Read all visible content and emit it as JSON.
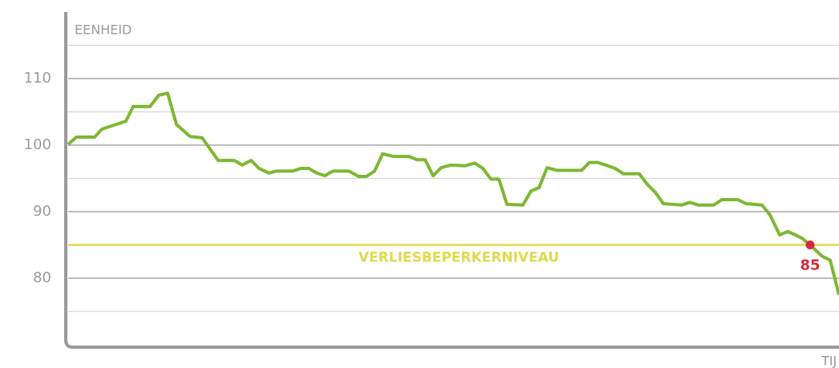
{
  "chart_data": {
    "type": "line",
    "ylabel": "EENHEID",
    "xlabel": "TIJ",
    "ylim": [
      70,
      120
    ],
    "yticks": [
      80,
      90,
      100,
      110
    ],
    "minor_yticks": [
      75,
      85,
      95,
      105,
      115
    ],
    "grid": true,
    "xlim": [
      0,
      961
    ],
    "series": [
      {
        "color": "#7cb832",
        "x": [
          0,
          10,
          33,
          42,
          72,
          81,
          102,
          113,
          124,
          135,
          152,
          167,
          187,
          207,
          217,
          228,
          238,
          250,
          260,
          280,
          290,
          300,
          310,
          320,
          330,
          350,
          362,
          372,
          382,
          392,
          405,
          425,
          435,
          445,
          455,
          465,
          477,
          495,
          507,
          517,
          527,
          537,
          547,
          567,
          577,
          587,
          597,
          610,
          640,
          650,
          660,
          670,
          682,
          692,
          712,
          722,
          732,
          742,
          765,
          775,
          785,
          805,
          815,
          835,
          845,
          865,
          875,
          887,
          897,
          905,
          915,
          925,
          940,
          950,
          961
        ],
        "values": [
          100.1,
          101.2,
          101.2,
          102.4,
          103.6,
          105.8,
          105.8,
          107.5,
          107.8,
          103.1,
          101.3,
          101.1,
          97.7,
          97.7,
          97.0,
          97.7,
          96.5,
          95.8,
          96.1,
          96.1,
          96.5,
          96.5,
          95.8,
          95.4,
          96.1,
          96.1,
          95.3,
          95.3,
          96.1,
          98.7,
          98.3,
          98.3,
          97.8,
          97.8,
          95.4,
          96.6,
          97.0,
          96.9,
          97.3,
          96.5,
          94.9,
          94.9,
          91.1,
          91.0,
          93.1,
          93.6,
          96.6,
          96.2,
          96.2,
          97.4,
          97.4,
          97.0,
          96.5,
          95.7,
          95.7,
          94.1,
          92.9,
          91.2,
          91.0,
          91.4,
          91.0,
          91.0,
          91.8,
          91.8,
          91.2,
          91.0,
          89.5,
          86.5,
          87.0,
          86.6,
          86.0,
          85,
          83.3,
          82.7,
          77.5
        ]
      }
    ],
    "threshold": {
      "value": 85,
      "label": "VERLIESBEPERKERNIVEAU",
      "color": "#e2d94c"
    },
    "marker": {
      "x": 925,
      "y": 85,
      "color": "#d42a3a"
    }
  }
}
